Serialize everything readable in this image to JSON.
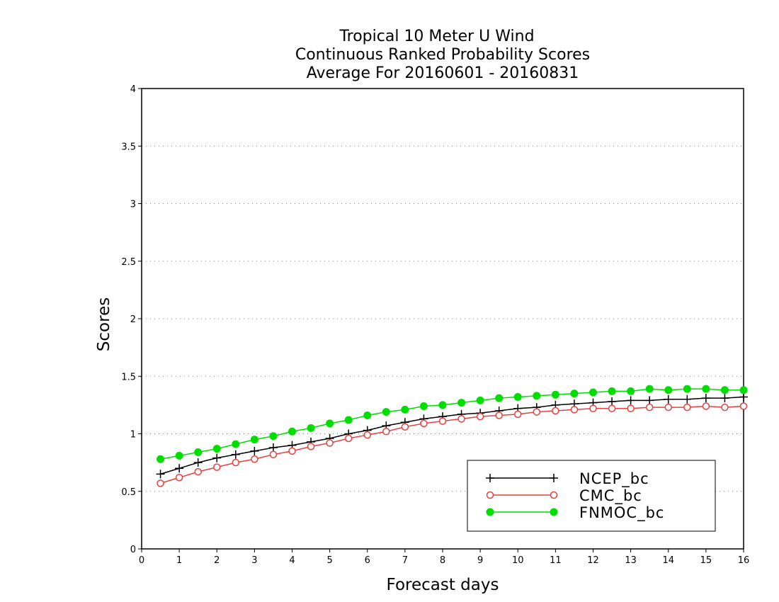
{
  "chart_data": {
    "type": "line",
    "title": [
      "Tropical 10 Meter U Wind",
      "Continuous Ranked Probability Scores",
      "Average For 20160601 - 20160831"
    ],
    "xlabel": "Forecast days",
    "ylabel": "Scores",
    "xlim": [
      0,
      16
    ],
    "ylim": [
      0,
      4
    ],
    "xticks": [
      "0",
      "1",
      "2",
      "3",
      "4",
      "5",
      "6",
      "7",
      "8",
      "9",
      "10",
      "11",
      "12",
      "13",
      "14",
      "15",
      "16"
    ],
    "yticks": [
      "0",
      "0.5",
      "1",
      "1.5",
      "2",
      "2.5",
      "3",
      "3.5",
      "4"
    ],
    "grid": "horizontal dotted",
    "legend_position": "bottom-right",
    "x": [
      0.5,
      1,
      1.5,
      2,
      2.5,
      3,
      3.5,
      4,
      4.5,
      5,
      5.5,
      6,
      6.5,
      7,
      7.5,
      8,
      8.5,
      9,
      9.5,
      10,
      10.5,
      11,
      11.5,
      12,
      12.5,
      13,
      13.5,
      14,
      14.5,
      15,
      15.5,
      16
    ],
    "series": [
      {
        "name": "NCEP_bc",
        "color": "#000000",
        "marker": "plus",
        "values": [
          0.65,
          0.7,
          0.75,
          0.79,
          0.82,
          0.85,
          0.88,
          0.9,
          0.93,
          0.96,
          1.0,
          1.03,
          1.07,
          1.1,
          1.13,
          1.15,
          1.17,
          1.18,
          1.2,
          1.22,
          1.23,
          1.25,
          1.26,
          1.27,
          1.28,
          1.29,
          1.29,
          1.3,
          1.3,
          1.31,
          1.31,
          1.32
        ]
      },
      {
        "name": "CMC_bc",
        "color": "#e84040",
        "marker": "open-circle",
        "values": [
          0.57,
          0.62,
          0.67,
          0.71,
          0.75,
          0.78,
          0.82,
          0.85,
          0.89,
          0.92,
          0.96,
          0.99,
          1.02,
          1.06,
          1.09,
          1.11,
          1.13,
          1.15,
          1.16,
          1.17,
          1.19,
          1.2,
          1.21,
          1.22,
          1.22,
          1.22,
          1.23,
          1.23,
          1.23,
          1.24,
          1.23,
          1.24
        ]
      },
      {
        "name": "FNMOC_bc",
        "color": "#00dd00",
        "marker": "filled-circle",
        "values": [
          0.78,
          0.81,
          0.84,
          0.87,
          0.91,
          0.95,
          0.98,
          1.02,
          1.05,
          1.09,
          1.12,
          1.16,
          1.19,
          1.21,
          1.24,
          1.25,
          1.27,
          1.29,
          1.31,
          1.32,
          1.33,
          1.34,
          1.35,
          1.36,
          1.37,
          1.37,
          1.39,
          1.38,
          1.39,
          1.39,
          1.38,
          1.38
        ]
      }
    ]
  }
}
